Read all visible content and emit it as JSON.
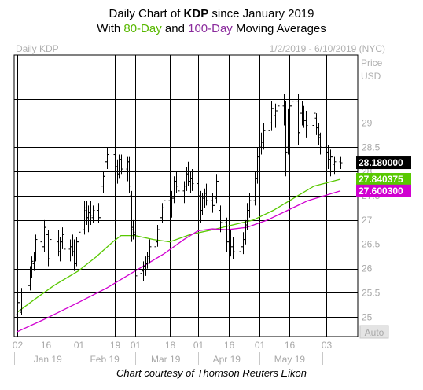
{
  "header": {
    "title_prefix": "Daily Chart of",
    "ticker": "KDP",
    "title_suffix": "since January 2019",
    "subtitle_prefix": "With",
    "ma80_label": "80-Day",
    "subtitle_and": "and",
    "ma100_label": "100-Day",
    "subtitle_suffix": "Moving Averages"
  },
  "panel": {
    "name": "Daily KDP",
    "range": "1/2/2019 - 6/10/2019 (NYC)",
    "axis_title_1": "Price",
    "axis_title_2": "USD",
    "auto_button": "Auto"
  },
  "credit": "Chart courtesy of Thomson Reuters Eikon",
  "colors": {
    "ma80": "#58c800",
    "ma100": "#d000d0",
    "price": "#000000",
    "grid": "#000000",
    "label_text": "#a8a8a8"
  },
  "chart_data": {
    "type": "line",
    "x_type": "date",
    "x_range": [
      "2019-01-02",
      "2019-06-10"
    ],
    "ylim": [
      24.6,
      30.4
    ],
    "y_ticks": [
      25,
      25.5,
      26,
      26.5,
      27,
      27.5,
      28,
      28.5,
      29
    ],
    "y_tick_labels": [
      "25",
      "25.5",
      "26",
      "26.5",
      "27",
      "27.5",
      "28",
      "28.5",
      "29"
    ],
    "x_tick_labels": [
      {
        "date": "2019-01-02",
        "label": "02"
      },
      {
        "date": "2019-01-16",
        "label": "16"
      },
      {
        "date": "2019-02-01",
        "label": "01"
      },
      {
        "date": "2019-02-19",
        "label": "19"
      },
      {
        "date": "2019-03-01",
        "label": "01"
      },
      {
        "date": "2019-03-18",
        "label": "18"
      },
      {
        "date": "2019-04-01",
        "label": "01"
      },
      {
        "date": "2019-04-16",
        "label": "16"
      },
      {
        "date": "2019-05-01",
        "label": "01"
      },
      {
        "date": "2019-05-16",
        "label": "16"
      },
      {
        "date": "2019-06-03",
        "label": "03"
      }
    ],
    "month_labels": [
      {
        "date": "2019-01-17",
        "label": "Jan 19"
      },
      {
        "date": "2019-02-14",
        "label": "Feb 19"
      },
      {
        "date": "2019-03-16",
        "label": "Mar 19"
      },
      {
        "date": "2019-04-15",
        "label": "Apr 19"
      },
      {
        "date": "2019-05-16",
        "label": "May 19"
      }
    ],
    "month_boundaries": [
      "2019-02-01",
      "2019-03-01",
      "2019-04-01",
      "2019-05-01",
      "2019-06-01"
    ],
    "last_values": [
      {
        "value": "28.180000",
        "y": 28.18,
        "color": "#000000",
        "text_color": "#ffffff"
      },
      {
        "value": "27.840375",
        "y": 27.84,
        "color": "#58c800",
        "text_color": "#ffffff"
      },
      {
        "value": "27.600300",
        "y": 27.6,
        "color": "#d000d0",
        "text_color": "#ffffff"
      }
    ],
    "price_bars": [
      [
        "2019-01-02",
        25.05,
        25.45,
        24.95,
        25.3
      ],
      [
        "2019-01-03",
        25.3,
        25.5,
        25.0,
        25.1
      ],
      [
        "2019-01-04",
        25.15,
        25.6,
        25.05,
        25.5
      ],
      [
        "2019-01-07",
        25.5,
        25.8,
        25.35,
        25.65
      ],
      [
        "2019-01-08",
        25.65,
        26.05,
        25.55,
        25.95
      ],
      [
        "2019-01-09",
        25.95,
        26.25,
        25.8,
        26.15
      ],
      [
        "2019-01-10",
        26.1,
        26.35,
        25.95,
        26.25
      ],
      [
        "2019-01-11",
        26.25,
        26.7,
        26.15,
        26.6
      ],
      [
        "2019-01-14",
        26.55,
        26.85,
        26.3,
        26.45
      ],
      [
        "2019-01-15",
        26.45,
        27.0,
        26.35,
        26.85
      ],
      [
        "2019-01-16",
        26.85,
        27.0,
        26.55,
        26.7
      ],
      [
        "2019-01-17",
        26.7,
        26.8,
        26.05,
        26.2
      ],
      [
        "2019-01-18",
        26.2,
        26.7,
        26.1,
        26.6
      ],
      [
        "2019-01-22",
        26.55,
        26.8,
        26.25,
        26.35
      ],
      [
        "2019-01-23",
        26.35,
        26.65,
        26.15,
        26.55
      ],
      [
        "2019-01-24",
        26.55,
        26.85,
        26.4,
        26.7
      ],
      [
        "2019-01-25",
        26.65,
        26.8,
        26.3,
        26.4
      ],
      [
        "2019-01-28",
        26.4,
        26.6,
        26.15,
        26.45
      ],
      [
        "2019-01-29",
        26.45,
        26.7,
        26.25,
        26.35
      ],
      [
        "2019-01-30",
        26.35,
        26.6,
        25.95,
        26.1
      ],
      [
        "2019-01-31",
        26.1,
        26.65,
        26.05,
        26.55
      ],
      [
        "2019-02-01",
        26.55,
        26.85,
        26.4,
        26.75
      ],
      [
        "2019-02-04",
        26.8,
        27.4,
        26.7,
        27.25
      ],
      [
        "2019-02-05",
        27.2,
        27.4,
        26.9,
        27.05
      ],
      [
        "2019-02-06",
        27.05,
        27.3,
        26.75,
        27.15
      ],
      [
        "2019-02-07",
        27.15,
        27.4,
        26.9,
        27.1
      ],
      [
        "2019-02-08",
        27.05,
        27.3,
        26.95,
        27.2
      ],
      [
        "2019-02-11",
        27.2,
        27.35,
        26.95,
        27.05
      ],
      [
        "2019-02-12",
        27.05,
        27.8,
        27.0,
        27.7
      ],
      [
        "2019-02-13",
        27.7,
        28.0,
        27.55,
        27.9
      ],
      [
        "2019-02-14",
        27.9,
        28.3,
        27.8,
        28.2
      ],
      [
        "2019-02-15",
        28.2,
        28.5,
        28.05,
        28.35
      ],
      [
        "2019-02-19",
        28.35,
        28.45,
        28.0,
        28.1
      ],
      [
        "2019-02-20",
        28.1,
        28.25,
        27.75,
        27.95
      ],
      [
        "2019-02-21",
        27.95,
        28.35,
        27.85,
        28.25
      ],
      [
        "2019-02-22",
        28.25,
        28.35,
        27.95,
        28.05
      ],
      [
        "2019-02-25",
        28.05,
        28.3,
        27.8,
        28.2
      ],
      [
        "2019-02-26",
        28.2,
        28.3,
        27.55,
        27.7
      ],
      [
        "2019-02-27",
        27.5,
        27.6,
        26.55,
        26.85
      ],
      [
        "2019-02-28",
        26.8,
        27.0,
        26.6,
        26.75
      ],
      [
        "2019-03-01",
        26.7,
        26.85,
        25.05,
        25.85
      ],
      [
        "2019-03-04",
        25.9,
        26.2,
        25.7,
        25.95
      ],
      [
        "2019-03-05",
        25.95,
        26.15,
        25.75,
        26.05
      ],
      [
        "2019-03-06",
        26.05,
        26.25,
        25.85,
        26.1
      ],
      [
        "2019-03-07",
        26.1,
        26.35,
        26.0,
        26.25
      ],
      [
        "2019-03-08",
        26.2,
        26.6,
        26.1,
        26.45
      ],
      [
        "2019-03-11",
        26.45,
        26.7,
        26.3,
        26.55
      ],
      [
        "2019-03-12",
        26.55,
        26.9,
        26.45,
        26.8
      ],
      [
        "2019-03-13",
        26.8,
        27.2,
        26.7,
        27.05
      ],
      [
        "2019-03-14",
        27.05,
        27.35,
        26.95,
        27.25
      ],
      [
        "2019-03-15",
        27.25,
        27.55,
        27.15,
        27.4
      ],
      [
        "2019-03-18",
        27.4,
        27.65,
        27.2,
        27.35
      ],
      [
        "2019-03-19",
        27.35,
        27.6,
        27.05,
        27.45
      ],
      [
        "2019-03-20",
        27.45,
        27.9,
        27.35,
        27.8
      ],
      [
        "2019-03-21",
        27.8,
        28.0,
        27.55,
        27.7
      ],
      [
        "2019-03-22",
        27.7,
        27.95,
        27.4,
        27.6
      ],
      [
        "2019-03-25",
        27.6,
        27.8,
        27.35,
        27.7
      ],
      [
        "2019-03-26",
        27.7,
        28.1,
        27.6,
        27.95
      ],
      [
        "2019-03-27",
        27.95,
        28.2,
        27.7,
        27.8
      ],
      [
        "2019-03-28",
        27.8,
        28.0,
        27.55,
        27.85
      ],
      [
        "2019-03-29",
        27.85,
        28.05,
        27.6,
        27.75
      ],
      [
        "2019-04-01",
        27.75,
        27.9,
        27.35,
        27.5
      ],
      [
        "2019-04-02",
        27.5,
        27.6,
        26.95,
        27.2
      ],
      [
        "2019-04-03",
        27.2,
        27.55,
        27.1,
        27.45
      ],
      [
        "2019-04-04",
        27.45,
        27.65,
        27.25,
        27.55
      ],
      [
        "2019-04-05",
        27.55,
        27.75,
        27.3,
        27.4
      ],
      [
        "2019-04-08",
        27.4,
        27.55,
        27.15,
        27.3
      ],
      [
        "2019-04-09",
        27.3,
        27.6,
        27.05,
        27.45
      ],
      [
        "2019-04-10",
        27.45,
        27.95,
        27.35,
        27.8
      ],
      [
        "2019-04-11",
        27.8,
        27.9,
        27.05,
        27.2
      ],
      [
        "2019-04-12",
        27.2,
        27.3,
        26.75,
        26.95
      ],
      [
        "2019-04-15",
        26.95,
        27.05,
        26.35,
        26.55
      ],
      [
        "2019-04-16",
        26.55,
        26.85,
        26.4,
        26.7
      ],
      [
        "2019-04-17",
        26.7,
        26.8,
        26.25,
        26.45
      ],
      [
        "2019-04-18",
        26.45,
        26.65,
        26.2,
        26.35
      ],
      [
        "2019-04-22",
        26.35,
        26.55,
        26.1,
        26.45
      ],
      [
        "2019-04-23",
        26.45,
        26.75,
        26.3,
        26.6
      ],
      [
        "2019-04-24",
        26.6,
        27.0,
        26.5,
        26.9
      ],
      [
        "2019-04-25",
        26.9,
        27.35,
        26.8,
        27.2
      ],
      [
        "2019-04-26",
        27.2,
        27.55,
        27.05,
        27.4
      ],
      [
        "2019-04-29",
        27.4,
        28.0,
        27.3,
        27.85
      ],
      [
        "2019-04-30",
        27.85,
        28.5,
        27.75,
        28.3
      ],
      [
        "2019-05-01",
        28.3,
        28.65,
        28.15,
        28.5
      ],
      [
        "2019-05-02",
        28.5,
        28.8,
        28.35,
        28.6
      ],
      [
        "2019-05-03",
        28.6,
        29.0,
        28.45,
        28.85
      ],
      [
        "2019-05-06",
        28.85,
        29.2,
        28.7,
        29.0
      ],
      [
        "2019-05-07",
        29.0,
        29.45,
        28.85,
        29.3
      ],
      [
        "2019-05-08",
        29.3,
        29.5,
        29.0,
        29.15
      ],
      [
        "2019-05-09",
        29.15,
        29.4,
        28.9,
        29.25
      ],
      [
        "2019-05-10",
        29.25,
        29.55,
        29.05,
        29.35
      ],
      [
        "2019-05-13",
        29.35,
        29.6,
        28.95,
        29.1
      ],
      [
        "2019-05-14",
        29.1,
        29.45,
        27.9,
        28.4
      ],
      [
        "2019-05-15",
        28.5,
        29.3,
        28.35,
        29.1
      ],
      [
        "2019-05-16",
        29.1,
        29.55,
        28.95,
        29.35
      ],
      [
        "2019-05-17",
        29.35,
        29.7,
        29.15,
        29.45
      ],
      [
        "2019-05-20",
        29.45,
        29.6,
        28.55,
        28.8
      ],
      [
        "2019-05-21",
        28.8,
        29.35,
        28.7,
        29.2
      ],
      [
        "2019-05-22",
        29.2,
        29.45,
        28.95,
        29.25
      ],
      [
        "2019-05-23",
        29.25,
        29.35,
        28.9,
        29.05
      ],
      [
        "2019-05-24",
        29.05,
        29.25,
        28.7,
        28.95
      ],
      [
        "2019-05-28",
        28.95,
        29.3,
        28.85,
        29.2
      ],
      [
        "2019-05-29",
        29.1,
        29.2,
        28.75,
        28.9
      ],
      [
        "2019-05-30",
        28.9,
        29.0,
        28.55,
        28.75
      ],
      [
        "2019-05-31",
        28.7,
        28.8,
        28.35,
        28.5
      ],
      [
        "2019-06-03",
        28.5,
        28.7,
        28.15,
        28.4
      ],
      [
        "2019-06-04",
        28.4,
        28.55,
        28.05,
        28.25
      ],
      [
        "2019-06-05",
        28.25,
        28.45,
        27.9,
        28.3
      ],
      [
        "2019-06-06",
        28.3,
        28.4,
        28.05,
        28.15
      ],
      [
        "2019-06-07",
        28.15,
        28.3,
        27.95,
        28.2
      ],
      [
        "2019-06-10",
        28.2,
        28.3,
        28.05,
        28.18
      ]
    ],
    "series": [
      {
        "name": "80-Day",
        "color": "#58c800",
        "points": [
          [
            "2019-01-02",
            25.1
          ],
          [
            "2019-01-10",
            25.35
          ],
          [
            "2019-01-20",
            25.65
          ],
          [
            "2019-02-01",
            25.95
          ],
          [
            "2019-02-10",
            26.25
          ],
          [
            "2019-02-18",
            26.55
          ],
          [
            "2019-02-22",
            26.68
          ],
          [
            "2019-03-01",
            26.68
          ],
          [
            "2019-03-10",
            26.6
          ],
          [
            "2019-03-18",
            26.55
          ],
          [
            "2019-03-28",
            26.7
          ],
          [
            "2019-04-08",
            26.8
          ],
          [
            "2019-04-18",
            26.9
          ],
          [
            "2019-04-28",
            27.0
          ],
          [
            "2019-05-08",
            27.2
          ],
          [
            "2019-05-18",
            27.45
          ],
          [
            "2019-05-28",
            27.7
          ],
          [
            "2019-06-10",
            27.84
          ]
        ]
      },
      {
        "name": "100-Day",
        "color": "#d000d0",
        "points": [
          [
            "2019-01-02",
            24.7
          ],
          [
            "2019-01-15",
            24.95
          ],
          [
            "2019-02-01",
            25.3
          ],
          [
            "2019-02-15",
            25.6
          ],
          [
            "2019-03-01",
            25.95
          ],
          [
            "2019-03-15",
            26.3
          ],
          [
            "2019-03-25",
            26.6
          ],
          [
            "2019-04-01",
            26.78
          ],
          [
            "2019-04-08",
            26.82
          ],
          [
            "2019-04-15",
            26.8
          ],
          [
            "2019-04-25",
            26.85
          ],
          [
            "2019-05-05",
            27.0
          ],
          [
            "2019-05-15",
            27.2
          ],
          [
            "2019-05-25",
            27.4
          ],
          [
            "2019-06-10",
            27.6
          ]
        ]
      }
    ]
  }
}
